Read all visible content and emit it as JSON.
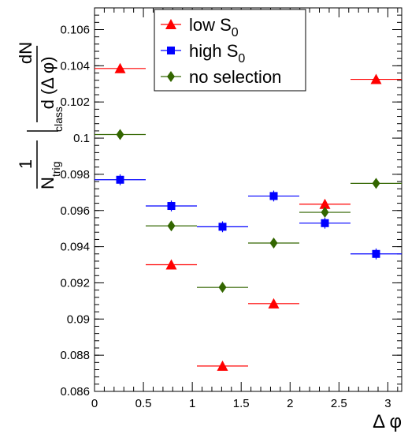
{
  "chart_data": {
    "type": "scatter",
    "xlabel": "Δ φ",
    "ylabel": {
      "numerator": "dN",
      "denominator": "d (Δ φ)",
      "factor_numerator": "1",
      "factor_denominator_base": "N",
      "factor_denominator_subscript": "trig",
      "class_subscript": "class"
    },
    "xlim": [
      0,
      3.1416
    ],
    "ylim": [
      0.086,
      0.1072
    ],
    "x_ticks": [
      0,
      0.5,
      1,
      1.5,
      2,
      2.5,
      3
    ],
    "x_tick_labels": [
      "0",
      "0.5",
      "1",
      "1.5",
      "2",
      "2.5",
      "3"
    ],
    "y_ticks": [
      0.086,
      0.088,
      0.09,
      0.092,
      0.094,
      0.096,
      0.098,
      0.1,
      0.102,
      0.104,
      0.106
    ],
    "y_tick_labels": [
      "0.086",
      "0.088",
      "0.09",
      "0.092",
      "0.094",
      "0.096",
      "0.098",
      "0.1",
      "0.102",
      "0.104",
      "0.106"
    ],
    "bin_half_width": 0.2618,
    "x": [
      0.2618,
      0.7854,
      1.309,
      1.8326,
      2.3562,
      2.8798
    ],
    "series": [
      {
        "name": "low S",
        "name_subscript": "0",
        "color": "#ff0000",
        "marker": "triangle",
        "values": [
          0.10385,
          0.093,
          0.0874,
          0.09085,
          0.09635,
          0.10325
        ],
        "errors": [
          0.0002,
          0.0002,
          0.0002,
          0.0002,
          0.0002,
          0.0002
        ]
      },
      {
        "name": "high S",
        "name_subscript": "0",
        "color": "#0000ff",
        "marker": "square",
        "values": [
          0.0977,
          0.09625,
          0.0951,
          0.0968,
          0.0953,
          0.0936
        ],
        "errors": [
          0.0003,
          0.0003,
          0.0003,
          0.0003,
          0.0003,
          0.0003
        ]
      },
      {
        "name": "no selection",
        "name_subscript": "",
        "color": "#336600",
        "marker": "diamond",
        "values": [
          0.1002,
          0.09515,
          0.09175,
          0.0942,
          0.0959,
          0.0975
        ],
        "errors": [
          0.00015,
          0.00015,
          0.00015,
          0.00015,
          0.00015,
          0.00015
        ]
      }
    ],
    "legend_position": "top-center",
    "grid": false
  }
}
